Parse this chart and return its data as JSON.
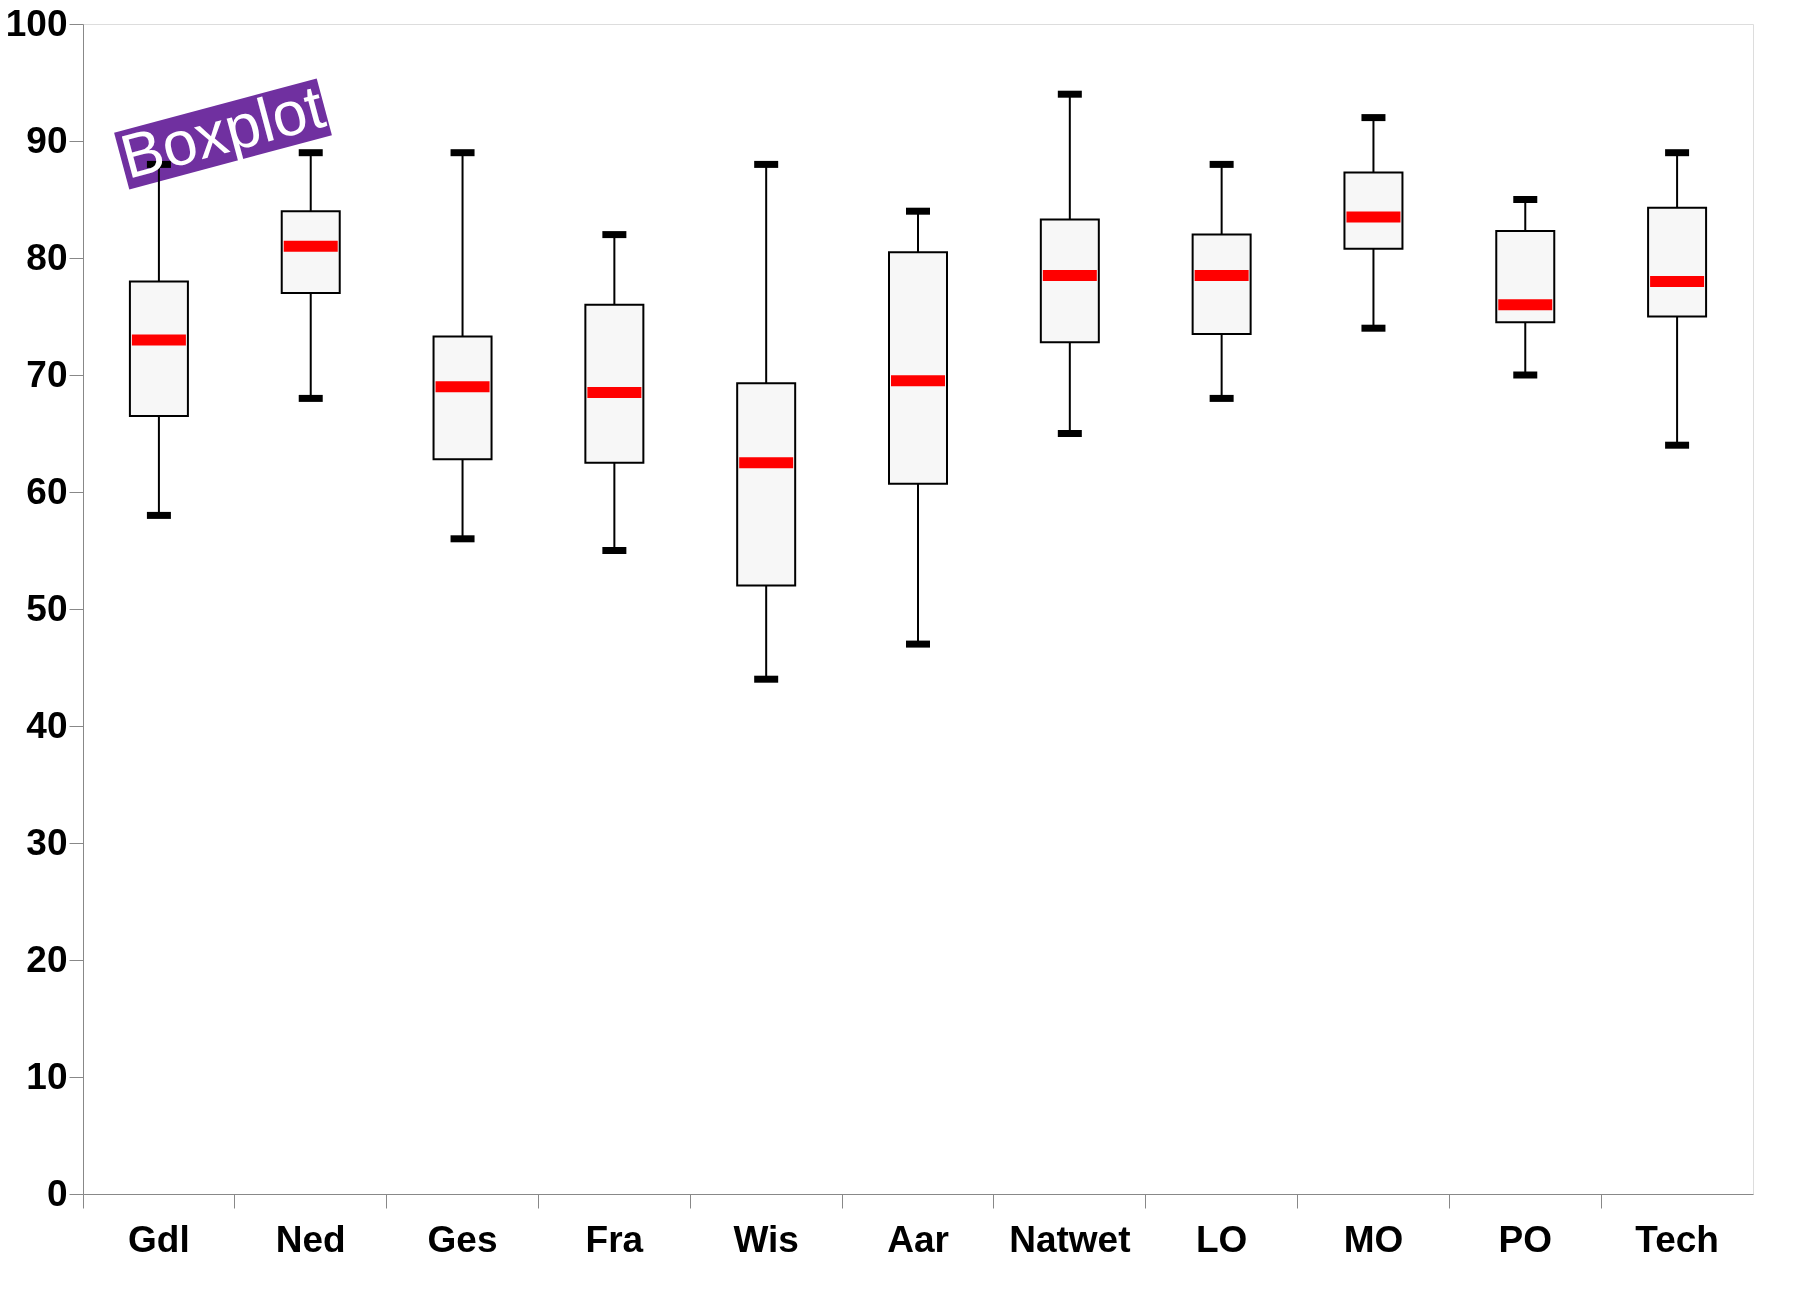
{
  "chart_data": {
    "type": "box",
    "categories": [
      "Gdl",
      "Ned",
      "Ges",
      "Fra",
      "Wis",
      "Aar",
      "Natwet",
      "LO",
      "MO",
      "PO",
      "Tech"
    ],
    "boxes": [
      {
        "low": 58,
        "q1": 66.5,
        "median": 73,
        "q3": 78,
        "high": 88
      },
      {
        "low": 68,
        "q1": 77,
        "median": 81,
        "q3": 84,
        "high": 89
      },
      {
        "low": 56,
        "q1": 62.8,
        "median": 69,
        "q3": 73.3,
        "high": 89
      },
      {
        "low": 55,
        "q1": 62.5,
        "median": 68.5,
        "q3": 76,
        "high": 82
      },
      {
        "low": 44,
        "q1": 52,
        "median": 62.5,
        "q3": 69.3,
        "high": 88
      },
      {
        "low": 47,
        "q1": 60.7,
        "median": 69.5,
        "q3": 80.5,
        "high": 84
      },
      {
        "low": 65,
        "q1": 72.8,
        "median": 78.5,
        "q3": 83.3,
        "high": 94
      },
      {
        "low": 68,
        "q1": 73.5,
        "median": 78.5,
        "q3": 82,
        "high": 88
      },
      {
        "low": 74,
        "q1": 80.8,
        "median": 83.5,
        "q3": 87.3,
        "high": 92
      },
      {
        "low": 70,
        "q1": 74.5,
        "median": 76,
        "q3": 82.3,
        "high": 85
      },
      {
        "low": 64,
        "q1": 75,
        "median": 78,
        "q3": 84.3,
        "high": 89
      }
    ],
    "color": "#f7f7f7",
    "ylim": [
      0,
      100
    ],
    "yticks": [
      0,
      10,
      20,
      30,
      40,
      50,
      60,
      70,
      80,
      90,
      100
    ],
    "grid": false,
    "annotations": [
      "Boxplot"
    ]
  }
}
